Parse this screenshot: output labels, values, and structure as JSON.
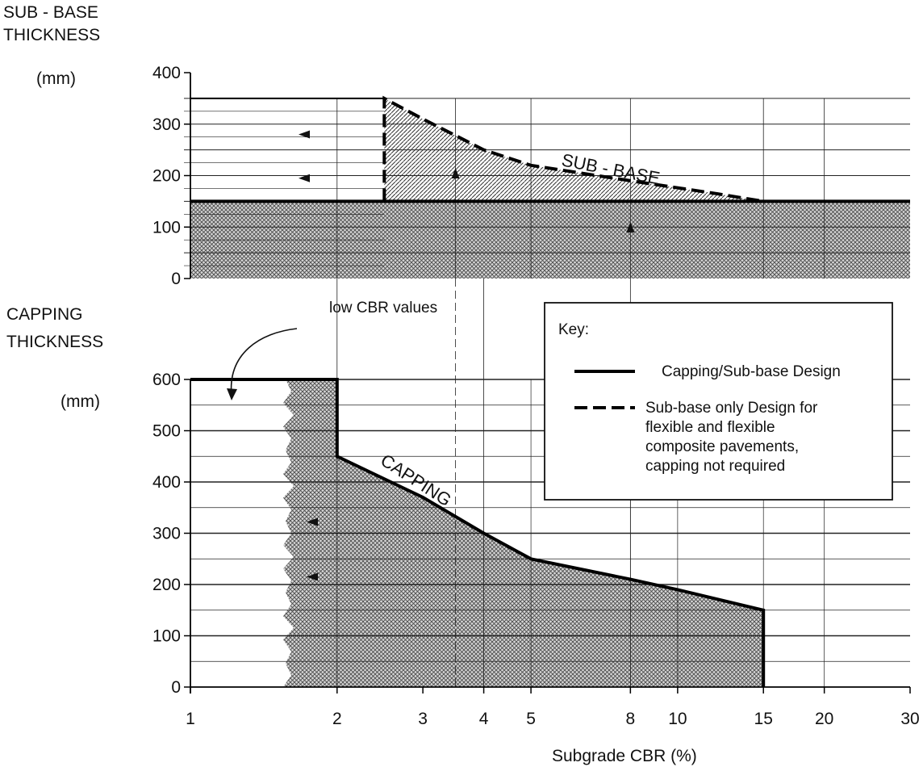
{
  "chart_data": {
    "type": "line",
    "x_scale": "log",
    "x_ticks": [
      "1",
      "2",
      "3",
      "4",
      "5",
      "8",
      "10",
      "15",
      "20",
      "30"
    ],
    "xlabel": "Subgrade CBR (%)",
    "xlim": [
      1,
      30
    ],
    "grid": true,
    "legend_position": "center-right",
    "legend_title": "Key:",
    "annotations": {
      "low_cbr": "low CBR values",
      "subbase_curve": "SUB - BASE",
      "capping_curve": "CAPPING"
    },
    "panels": [
      {
        "id": "subbase",
        "ylabel": [
          "SUB - BASE",
          "THICKNESS"
        ],
        "yunit": "(mm)",
        "y_ticks": [
          "400",
          "300",
          "200",
          "100",
          "0"
        ],
        "ylim": [
          0,
          400
        ],
        "series": [
          {
            "name": "Capping/Sub-base Design",
            "style": "solid",
            "points": [
              [
                1,
                150
              ],
              [
                30,
                150
              ]
            ]
          },
          {
            "name": "Sub-base only Design for flexible and flexible composite pavements, capping not required",
            "style": "dashed",
            "points": [
              [
                2.5,
                150
              ],
              [
                2.5,
                350
              ],
              [
                3,
                310
              ],
              [
                4,
                250
              ],
              [
                5,
                220
              ],
              [
                8,
                190
              ],
              [
                12,
                165
              ],
              [
                15,
                150
              ]
            ]
          }
        ]
      },
      {
        "id": "capping",
        "ylabel": [
          "CAPPING",
          "THICKNESS"
        ],
        "yunit": "(mm)",
        "y_ticks": [
          "600",
          "500",
          "400",
          "300",
          "200",
          "100",
          "0"
        ],
        "ylim": [
          0,
          600
        ],
        "series": [
          {
            "name": "Capping/Sub-base Design",
            "style": "solid",
            "points": [
              [
                1,
                600
              ],
              [
                2,
                600
              ],
              [
                2,
                450
              ],
              [
                3,
                370
              ],
              [
                4,
                300
              ],
              [
                5,
                250
              ],
              [
                8,
                210
              ],
              [
                10,
                190
              ],
              [
                15,
                150
              ],
              [
                15,
                0
              ]
            ]
          }
        ]
      }
    ],
    "legend": [
      {
        "style": "solid",
        "label": "Capping/Sub-base Design"
      },
      {
        "style": "dashed",
        "label_lines": [
          "Sub-base only Design for",
          "flexible and flexible",
          "composite pavements,",
          "capping not required"
        ]
      }
    ]
  }
}
